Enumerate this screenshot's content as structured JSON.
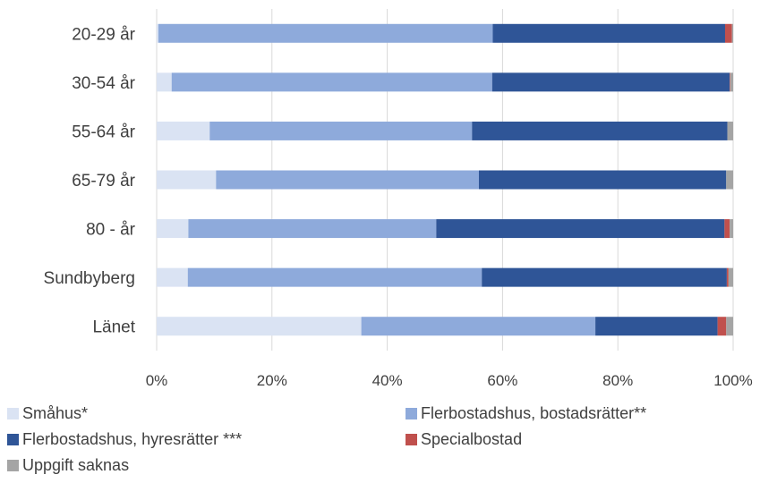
{
  "chart_data": {
    "type": "bar",
    "orientation": "horizontal",
    "stacked": "percent",
    "categories": [
      "20-29 år",
      "30-54 år",
      "55-64 år",
      "65-79 år",
      "80 - år",
      "Sundbyberg",
      "Länet"
    ],
    "series": [
      {
        "name": "Småhus*",
        "color": "#dae3f3",
        "values": [
          0.3,
          2.6,
          9.2,
          10.3,
          5.5,
          5.4,
          35.5
        ]
      },
      {
        "name": "Flerbostadshus, bostadsrätter**",
        "color": "#8eaadb",
        "values": [
          58.0,
          55.6,
          45.5,
          45.6,
          43.0,
          51.0,
          40.6
        ]
      },
      {
        "name": "Flerbostadshus, hyresrätter ***",
        "color": "#2f5597",
        "values": [
          40.3,
          41.2,
          44.3,
          42.9,
          50.0,
          42.5,
          21.2
        ]
      },
      {
        "name": "Specialbostad",
        "color": "#c0504d",
        "values": [
          1.2,
          0.1,
          0.0,
          0.0,
          0.9,
          0.3,
          1.5
        ]
      },
      {
        "name": "Uppgift saknas",
        "color": "#a5a5a5",
        "values": [
          0.2,
          0.5,
          1.0,
          1.2,
          0.6,
          0.8,
          1.2
        ]
      }
    ],
    "xlim": [
      0,
      100
    ],
    "x_ticks": [
      "0%",
      "20%",
      "40%",
      "60%",
      "80%",
      "100%"
    ],
    "grid": true,
    "legend_position": "bottom"
  }
}
